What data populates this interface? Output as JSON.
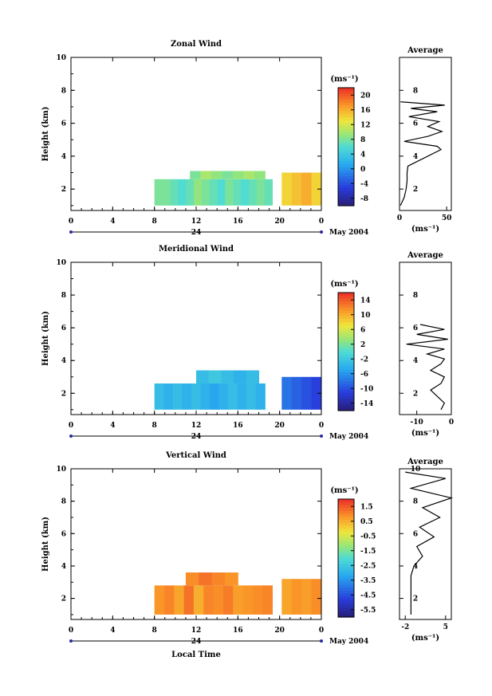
{
  "chart_data": [
    {
      "type": "heatmap",
      "title": "Zonal Wind",
      "ylabel": "Height (km)",
      "unit": "(ms⁻¹)",
      "x_ticks": [
        "0",
        "4",
        "8",
        "12",
        "16",
        "20",
        "0"
      ],
      "y_ticks": [
        "2",
        "4",
        "6",
        "8",
        "10"
      ],
      "ylim": [
        0.7,
        10
      ],
      "date_tick": "24",
      "date_label": "May 2004",
      "colorbar_ticks": [
        "20",
        "16",
        "12",
        "8",
        "4",
        "0",
        "-4",
        "-8"
      ],
      "colorbar_range": [
        -10,
        22
      ],
      "field_range": [
        -10,
        22
      ],
      "blocks": [
        {
          "t0": 8,
          "t1": 19.3,
          "h0": 1.0,
          "h1": 2.6,
          "values": [
            8,
            8,
            7,
            6,
            7,
            9,
            8,
            7,
            6,
            8,
            7,
            6,
            7,
            8,
            7
          ]
        },
        {
          "t0": 11.4,
          "t1": 18.6,
          "h0": 2.6,
          "h1": 3.1,
          "values": [
            8,
            10,
            9,
            8,
            9,
            10,
            9
          ]
        },
        {
          "t0": 20.2,
          "t1": 24,
          "h0": 1.0,
          "h1": 3.0,
          "values": [
            14,
            15,
            16,
            14
          ]
        }
      ],
      "average_profile": {
        "title": "Average",
        "xlabel": "(ms⁻¹)",
        "x_ticks": [
          "0",
          "50"
        ],
        "xlim": [
          0,
          55
        ],
        "y_ticks": [
          "2",
          "4",
          "6",
          "8"
        ],
        "height": [
          1.0,
          1.5,
          2.0,
          2.5,
          3.0,
          3.4,
          4.4,
          4.6,
          4.9,
          5.2,
          5.5,
          5.8,
          6.1,
          6.4,
          6.7,
          6.9,
          7.1,
          7.3
        ],
        "value": [
          1,
          5,
          7,
          8,
          8,
          9,
          44,
          40,
          5,
          30,
          45,
          30,
          42,
          10,
          40,
          12,
          48,
          1
        ]
      }
    },
    {
      "type": "heatmap",
      "title": "Meridional Wind",
      "ylabel": "Height (km)",
      "unit": "(ms⁻¹)",
      "x_ticks": [
        "0",
        "4",
        "8",
        "12",
        "16",
        "20",
        "0"
      ],
      "y_ticks": [
        "2",
        "4",
        "6",
        "8",
        "10"
      ],
      "ylim": [
        0.7,
        10
      ],
      "date_tick": "24",
      "date_label": "May 2004",
      "colorbar_ticks": [
        "14",
        "10",
        "6",
        "2",
        "-2",
        "-6",
        "-10",
        "-14"
      ],
      "colorbar_range": [
        -16,
        16
      ],
      "field_range": [
        -16,
        16
      ],
      "blocks": [
        {
          "t0": 8,
          "t1": 18.6,
          "h0": 1.0,
          "h1": 2.6,
          "values": [
            -3,
            -4,
            -3,
            -4,
            -3,
            -4,
            -5,
            -4,
            -3,
            -4,
            -3,
            -4
          ]
        },
        {
          "t0": 12,
          "t1": 18,
          "h0": 2.6,
          "h1": 3.4,
          "values": [
            -3,
            -2,
            -3,
            -4,
            -3
          ]
        },
        {
          "t0": 20.2,
          "t1": 24,
          "h0": 1.0,
          "h1": 3.0,
          "values": [
            -8,
            -9,
            -10,
            -11
          ]
        }
      ],
      "average_profile": {
        "title": "Average",
        "xlabel": "(ms⁻¹)",
        "x_ticks": [
          "-10",
          "0"
        ],
        "xlim": [
          -15,
          0
        ],
        "y_ticks": [
          "2",
          "4",
          "6",
          "8"
        ],
        "height": [
          1.0,
          1.4,
          1.8,
          2.2,
          2.6,
          3.0,
          3.4,
          3.8,
          4.1,
          4.4,
          4.7,
          5.0,
          5.3,
          5.6,
          5.9,
          6.2
        ],
        "value": [
          -3,
          -2,
          -4,
          -6,
          -3,
          -2,
          -6,
          -3,
          -2,
          -7,
          -2,
          -13,
          -1,
          -10,
          -2,
          -9
        ]
      }
    },
    {
      "type": "heatmap",
      "title": "Vertical Wind",
      "ylabel": "Height (km)",
      "xlabel": "Local Time",
      "unit": "(ms⁻¹)",
      "x_ticks": [
        "0",
        "4",
        "8",
        "12",
        "16",
        "20",
        "0"
      ],
      "y_ticks": [
        "2",
        "4",
        "6",
        "8",
        "10"
      ],
      "ylim": [
        0.7,
        10
      ],
      "date_tick": "24",
      "date_label": "May 2004",
      "colorbar_ticks": [
        "1.5",
        "0.5",
        "-0.5",
        "-1.5",
        "-2.5",
        "-3.5",
        "-4.5",
        "-5.5"
      ],
      "colorbar_range": [
        -6.0,
        2.0
      ],
      "field_range": [
        -6.0,
        2.0
      ],
      "blocks": [
        {
          "t0": 8,
          "t1": 19.3,
          "h0": 1.0,
          "h1": 2.8,
          "values": [
            0.8,
            1.0,
            0.6,
            1.2,
            0.5,
            1.0,
            0.9,
            1.1,
            0.7,
            0.8,
            0.9,
            1.0
          ]
        },
        {
          "t0": 11,
          "t1": 16,
          "h0": 2.8,
          "h1": 3.6,
          "values": [
            0.9,
            1.2,
            1.0,
            0.8
          ]
        },
        {
          "t0": 20.2,
          "t1": 24,
          "h0": 1.0,
          "h1": 3.2,
          "values": [
            0.6,
            0.8,
            0.7,
            0.9
          ]
        }
      ],
      "average_profile": {
        "title": "Average",
        "xlabel": "(ms⁻¹)",
        "x_ticks": [
          "-2",
          "5"
        ],
        "xlim": [
          -3,
          6
        ],
        "y_ticks": [
          "2",
          "4",
          "6",
          "8",
          "10"
        ],
        "height": [
          1.0,
          1.6,
          2.2,
          2.8,
          3.4,
          4.0,
          4.6,
          5.2,
          5.8,
          6.4,
          7.0,
          7.6,
          8.2,
          8.8,
          9.4,
          9.8
        ],
        "value": [
          -1,
          -1,
          -1,
          -1,
          -1,
          -0.5,
          1,
          0,
          3,
          0.5,
          4,
          1,
          6,
          -1,
          5,
          -2
        ]
      }
    }
  ]
}
